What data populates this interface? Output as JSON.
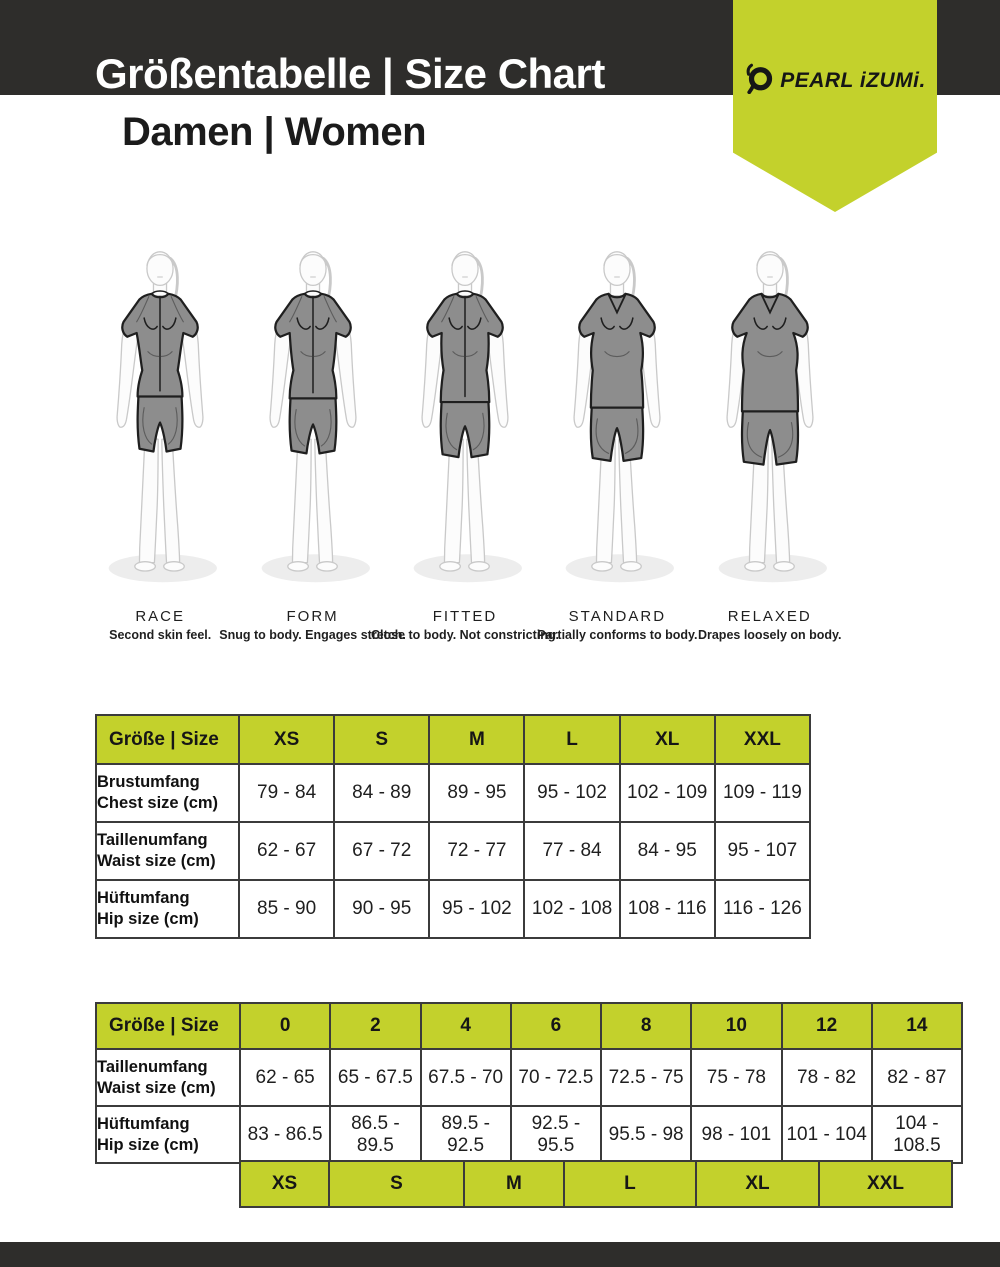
{
  "header": {
    "title": "Größentabelle | Size Chart",
    "subtitle": "Damen | Women",
    "brand": {
      "name": "PEARL iZUMi.",
      "icon": "pearl-izumi-ring-icon"
    }
  },
  "fit_guide": {
    "figures": [
      {
        "name": "RACE",
        "description": "Second skin feel."
      },
      {
        "name": "FORM",
        "description": "Snug to body. Engages stretch."
      },
      {
        "name": "FITTED",
        "description": "Close to body. Not constricting."
      },
      {
        "name": "STANDARD",
        "description": "Partially conforms to body."
      },
      {
        "name": "RELAXED",
        "description": "Drapes loosely on body."
      }
    ]
  },
  "size_table_letters": {
    "header_label": "Größe | Size",
    "columns": [
      "XS",
      "S",
      "M",
      "L",
      "XL",
      "XXL"
    ],
    "rows": [
      {
        "label_de": "Brustumfang",
        "label_en": "Chest size (cm)",
        "values": [
          "79 - 84",
          "84 - 89",
          "89 - 95",
          "95 - 102",
          "102 - 109",
          "109 - 119"
        ]
      },
      {
        "label_de": "Taillenumfang",
        "label_en": "Waist size (cm)",
        "values": [
          "62 - 67",
          "67 - 72",
          "72 - 77",
          "77 - 84",
          "84 - 95",
          "95 - 107"
        ]
      },
      {
        "label_de": "Hüftumfang",
        "label_en": "Hip size (cm)",
        "values": [
          "85 - 90",
          "90 - 95",
          "95 - 102",
          "102 - 108",
          "108 - 116",
          "116 - 126"
        ]
      }
    ]
  },
  "size_table_numeric": {
    "header_label": "Größe | Size",
    "columns": [
      "0",
      "2",
      "4",
      "6",
      "8",
      "10",
      "12",
      "14"
    ],
    "rows": [
      {
        "label_de": "Taillenumfang",
        "label_en": "Waist size (cm)",
        "values": [
          "62 - 65",
          "65 - 67.5",
          "67.5 - 70",
          "70 - 72.5",
          "72.5 - 75",
          "75 - 78",
          "78 - 82",
          "82 - 87"
        ]
      },
      {
        "label_de": "Hüftumfang",
        "label_en": "Hip size (cm)",
        "values": [
          "83 - 86.5",
          "86.5 - 89.5",
          "89.5 - 92.5",
          "92.5 - 95.5",
          "95.5 - 98",
          "98 - 101",
          "101 - 104",
          "104 - 108.5"
        ]
      }
    ],
    "letter_row": [
      "XS",
      "S",
      "M",
      "L",
      "XL",
      "XXL"
    ]
  },
  "colors": {
    "lime": "#c3d12c",
    "dark": "#2e2d2b",
    "table_border": "#3b3b3b"
  }
}
